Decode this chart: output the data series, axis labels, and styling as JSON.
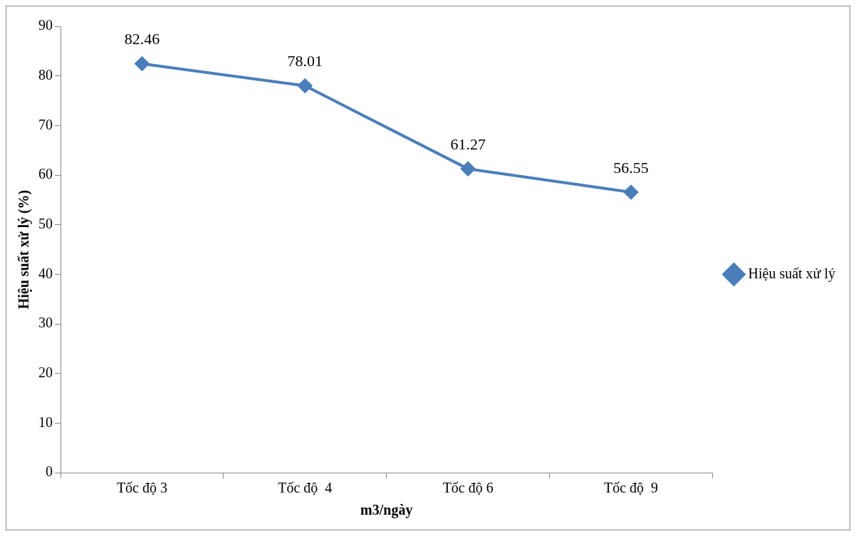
{
  "chart_data": {
    "type": "line",
    "xlabel": "m3/ngày",
    "ylabel": "Hiệu suất xử lý (%)",
    "categories": [
      "Tốc độ 3",
      "Tốc độ  4",
      "Tốc độ 6",
      "Tốc độ  9"
    ],
    "series": [
      {
        "name": "Hiệu suất xử lý",
        "color": "#4a7ebb",
        "values": [
          82.46,
          78.01,
          61.27,
          56.55
        ]
      }
    ],
    "ylim": [
      0,
      90
    ],
    "yticks": [
      0,
      10,
      20,
      30,
      40,
      50,
      60,
      70,
      80,
      90
    ],
    "grid": false,
    "legend": "right",
    "marker": "diamond",
    "line_style": "solid",
    "data_labels": true
  }
}
